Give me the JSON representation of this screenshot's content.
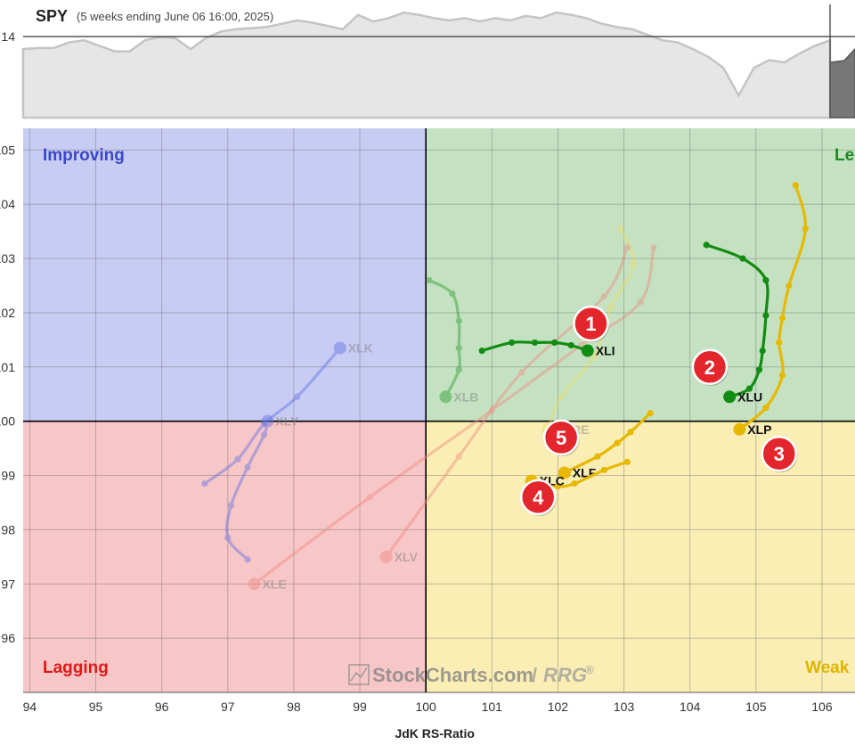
{
  "header": {
    "symbol": "SPY",
    "subtitle": "(5 weeks ending June 06 16:00, 2025)",
    "price_tick": "14"
  },
  "watermark": {
    "brand": "StockCharts.com",
    "sep": "/",
    "product": "RRG",
    "mark": "®"
  },
  "quadrants": {
    "improving": {
      "label": "Improving",
      "color": "#3a47c8",
      "fill": "#c8ccf2"
    },
    "leading": {
      "label": "Le",
      "color": "#1d8a1d",
      "fill": "#c4e2c2"
    },
    "weakening": {
      "label": "Weak",
      "color": "#e0b400",
      "fill": "#faeeb4"
    },
    "lagging": {
      "label": "Lagging",
      "color": "#e01818",
      "fill": "#f7c6c6"
    }
  },
  "chart_data": {
    "type": "scatter",
    "title": "SPY",
    "subtitle": "(5 weeks ending June 06 16:00, 2025)",
    "xlabel": "JdK RS-Ratio",
    "ylabel": "",
    "xlim": [
      93.9,
      106.5
    ],
    "ylim": [
      95.0,
      105.4
    ],
    "center": [
      100,
      100
    ],
    "grid": true,
    "x_ticks": [
      "94",
      "95",
      "96",
      "97",
      "98",
      "99",
      "100",
      "101",
      "102",
      "103",
      "104",
      "105",
      "106"
    ],
    "y_ticks": [
      "96",
      "97",
      "98",
      "99",
      "100",
      "101",
      "102",
      "103",
      "104",
      "105"
    ],
    "benchmark_price": [
      0.62,
      0.63,
      0.63,
      0.68,
      0.7,
      0.65,
      0.6,
      0.6,
      0.7,
      0.73,
      0.72,
      0.62,
      0.72,
      0.78,
      0.8,
      0.81,
      0.82,
      0.85,
      0.88,
      0.86,
      0.83,
      0.8,
      0.93,
      0.87,
      0.9,
      0.95,
      0.93,
      0.9,
      0.88,
      0.9,
      0.87,
      0.9,
      0.88,
      0.92,
      0.9,
      0.95,
      0.93,
      0.9,
      0.85,
      0.82,
      0.8,
      0.75,
      0.7,
      0.68,
      0.62,
      0.55,
      0.45,
      0.2,
      0.45,
      0.52,
      0.5,
      0.58,
      0.65,
      0.7
    ],
    "series": [
      {
        "name": "XLI",
        "color": "#128c12",
        "faded": false,
        "x": [
          100.85,
          101.3,
          101.65,
          101.95,
          102.2,
          102.45
        ],
        "y": [
          101.3,
          101.45,
          101.45,
          101.45,
          101.4,
          101.3
        ]
      },
      {
        "name": "XLU",
        "color": "#128c12",
        "faded": false,
        "x": [
          104.25,
          104.8,
          105.15,
          105.15,
          105.1,
          105.05,
          104.9,
          104.6
        ],
        "y": [
          103.25,
          103.0,
          102.6,
          101.95,
          101.3,
          100.95,
          100.6,
          100.45
        ]
      },
      {
        "name": "XLP",
        "color": "#e8b800",
        "faded": false,
        "x": [
          105.6,
          105.75,
          105.5,
          105.4,
          105.35,
          105.4,
          105.15,
          104.75
        ],
        "y": [
          104.35,
          103.55,
          102.5,
          101.9,
          101.45,
          100.85,
          100.25,
          99.85
        ]
      },
      {
        "name": "XLF",
        "color": "#e8b800",
        "faded": false,
        "x": [
          103.4,
          103.1,
          102.9,
          102.6,
          102.1
        ],
        "y": [
          100.15,
          99.8,
          99.6,
          99.35,
          99.05
        ]
      },
      {
        "name": "XLC",
        "color": "#e8b800",
        "faded": false,
        "x": [
          103.05,
          102.7,
          102.25,
          102.0,
          101.6
        ],
        "y": [
          99.25,
          99.1,
          98.85,
          98.8,
          98.9
        ]
      },
      {
        "name": "XLB",
        "color": "#2a9a2a",
        "faded": true,
        "x": [
          100.05,
          100.4,
          100.5,
          100.5,
          100.5,
          100.3
        ],
        "y": [
          102.6,
          102.35,
          101.85,
          101.35,
          100.95,
          100.45
        ]
      },
      {
        "name": "XLRE",
        "color": "#f0dc60",
        "faded": true,
        "x": [
          102.95,
          103.15,
          102.8,
          102.55,
          102.05,
          101.85
        ],
        "y": [
          103.55,
          102.9,
          102.1,
          101.2,
          100.45,
          99.85
        ]
      },
      {
        "name": "XLK",
        "color": "#6070e8",
        "faded": true,
        "x": [
          96.65,
          97.15,
          97.55,
          98.05,
          98.7
        ],
        "y": [
          98.85,
          99.3,
          99.95,
          100.45,
          101.35
        ]
      },
      {
        "name": "XLY",
        "color": "#6070e8",
        "faded": true,
        "x": [
          97.3,
          97.0,
          97.05,
          97.3,
          97.55,
          97.6
        ],
        "y": [
          97.45,
          97.85,
          98.45,
          99.15,
          99.75,
          100.0
        ]
      },
      {
        "name": "XLE",
        "color": "#f08a80",
        "faded": true,
        "x": [
          103.45,
          103.25,
          102.35,
          101.0,
          99.15,
          97.4
        ],
        "y": [
          103.2,
          102.2,
          101.4,
          100.2,
          98.6,
          97.0
        ]
      },
      {
        "name": "XLV",
        "color": "#f08a80",
        "faded": true,
        "x": [
          103.05,
          102.7,
          101.45,
          100.5,
          99.4
        ],
        "y": [
          103.2,
          102.3,
          100.9,
          99.35,
          97.5
        ]
      }
    ],
    "annotations": [
      {
        "label": "1",
        "x": 102.5,
        "y": 101.8
      },
      {
        "label": "2",
        "x": 104.3,
        "y": 101.0
      },
      {
        "label": "3",
        "x": 105.35,
        "y": 99.4
      },
      {
        "label": "4",
        "x": 101.7,
        "y": 98.6
      },
      {
        "label": "5",
        "x": 102.05,
        "y": 99.7
      }
    ]
  }
}
